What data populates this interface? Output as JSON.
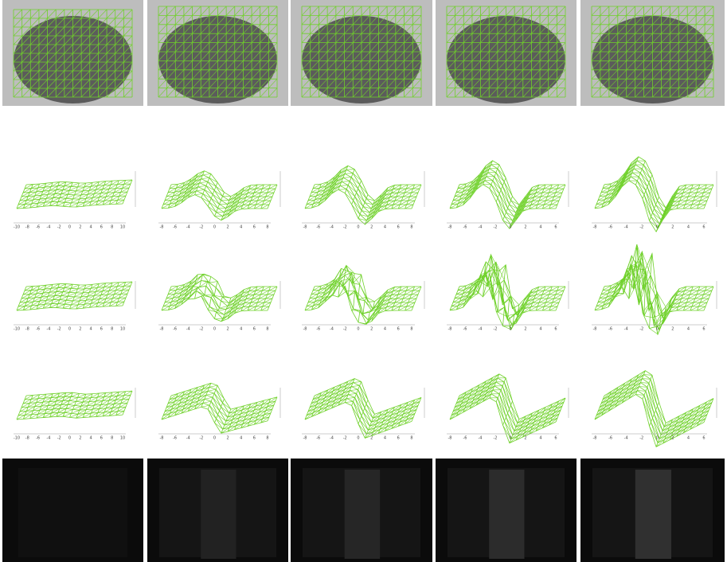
{
  "figure": {
    "plot_x_ticks": [
      [
        "-10",
        "-8",
        "-6",
        "-4",
        "-2",
        "0",
        "2",
        "4",
        "6",
        "8",
        "10"
      ],
      [
        "-8",
        "-6",
        "-4",
        "-2",
        "0",
        "2",
        "4",
        "6",
        "8"
      ],
      [
        "-8",
        "-6",
        "-4",
        "-2",
        "0",
        "2",
        "4",
        "6",
        "8"
      ],
      [
        "-8",
        "-6",
        "-4",
        "-2",
        "0",
        "2",
        "4",
        "6"
      ],
      [
        "-8",
        "-6",
        "-4",
        "-2",
        "0",
        "2",
        "4",
        "6"
      ]
    ]
  }
}
